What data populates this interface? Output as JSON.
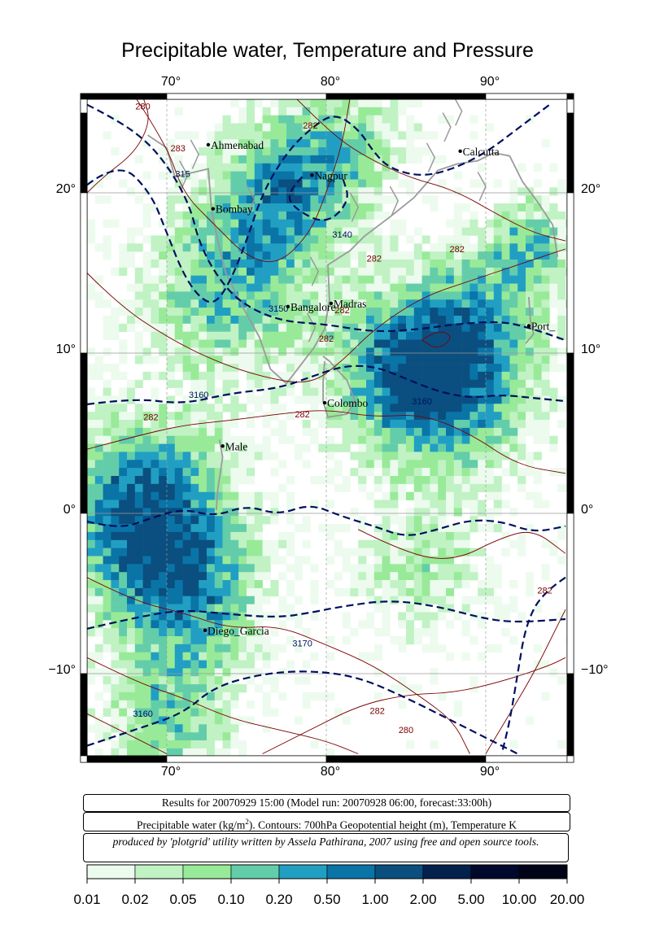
{
  "title": "Precipitable water, Temperature and Pressure",
  "map": {
    "lon_ticks": [
      "70°",
      "80°",
      "90°"
    ],
    "lat_ticks": [
      "20°",
      "10°",
      "0°",
      "−10°"
    ],
    "cities": [
      {
        "name": "Ahmenabad",
        "lon": 72.6,
        "lat": 23.0
      },
      {
        "name": "Nagpur",
        "lon": 79.1,
        "lat": 21.1
      },
      {
        "name": "Calcutta",
        "lon": 88.4,
        "lat": 22.6
      },
      {
        "name": "Bombay",
        "lon": 72.9,
        "lat": 19.0
      },
      {
        "name": "Bangalore",
        "lon": 77.6,
        "lat": 12.9
      },
      {
        "name": "Madras",
        "lon": 80.3,
        "lat": 13.1
      },
      {
        "name": "Port_",
        "lon": 92.7,
        "lat": 11.7
      },
      {
        "name": "Colombo",
        "lon": 79.9,
        "lat": 6.9
      },
      {
        "name": "Male",
        "lon": 73.5,
        "lat": 4.2
      },
      {
        "name": "Diego_Garcia",
        "lon": 72.4,
        "lat": -7.3
      }
    ],
    "height_contour_labels": [
      "3140",
      "3150",
      "3160",
      "3160",
      "3170",
      "3160",
      "315"
    ],
    "temp_contour_labels": [
      "280",
      "282",
      "283",
      "282",
      "282",
      "282",
      "282",
      "282",
      "282",
      "282",
      "282",
      "280"
    ]
  },
  "info": {
    "run": "Results for 20070929 15:00 (Model run: 20070928 06:00, forecast:33:00h)",
    "legend_prefix": "Precipitable water (kg/m",
    "legend_sup": "2",
    "legend_suffix": ").  Contours: 700hPa Geopotential height (m), Temperature K",
    "credit": "produced by 'plotgrid' utility written by Assela Pathirana, 2007 using free and open source tools."
  },
  "colorbar": {
    "labels": [
      "0.01",
      "0.02",
      "0.05",
      "0.10",
      "0.20",
      "0.50",
      "1.00",
      "2.00",
      "5.00",
      "10.00",
      "20.00"
    ],
    "colors": [
      "#ecfbee",
      "#c0f2c4",
      "#98ea99",
      "#63cdaa",
      "#219fc3",
      "#0a74a7",
      "#0a4f7f",
      "#02214c",
      "#00092c",
      "#000218"
    ]
  }
}
